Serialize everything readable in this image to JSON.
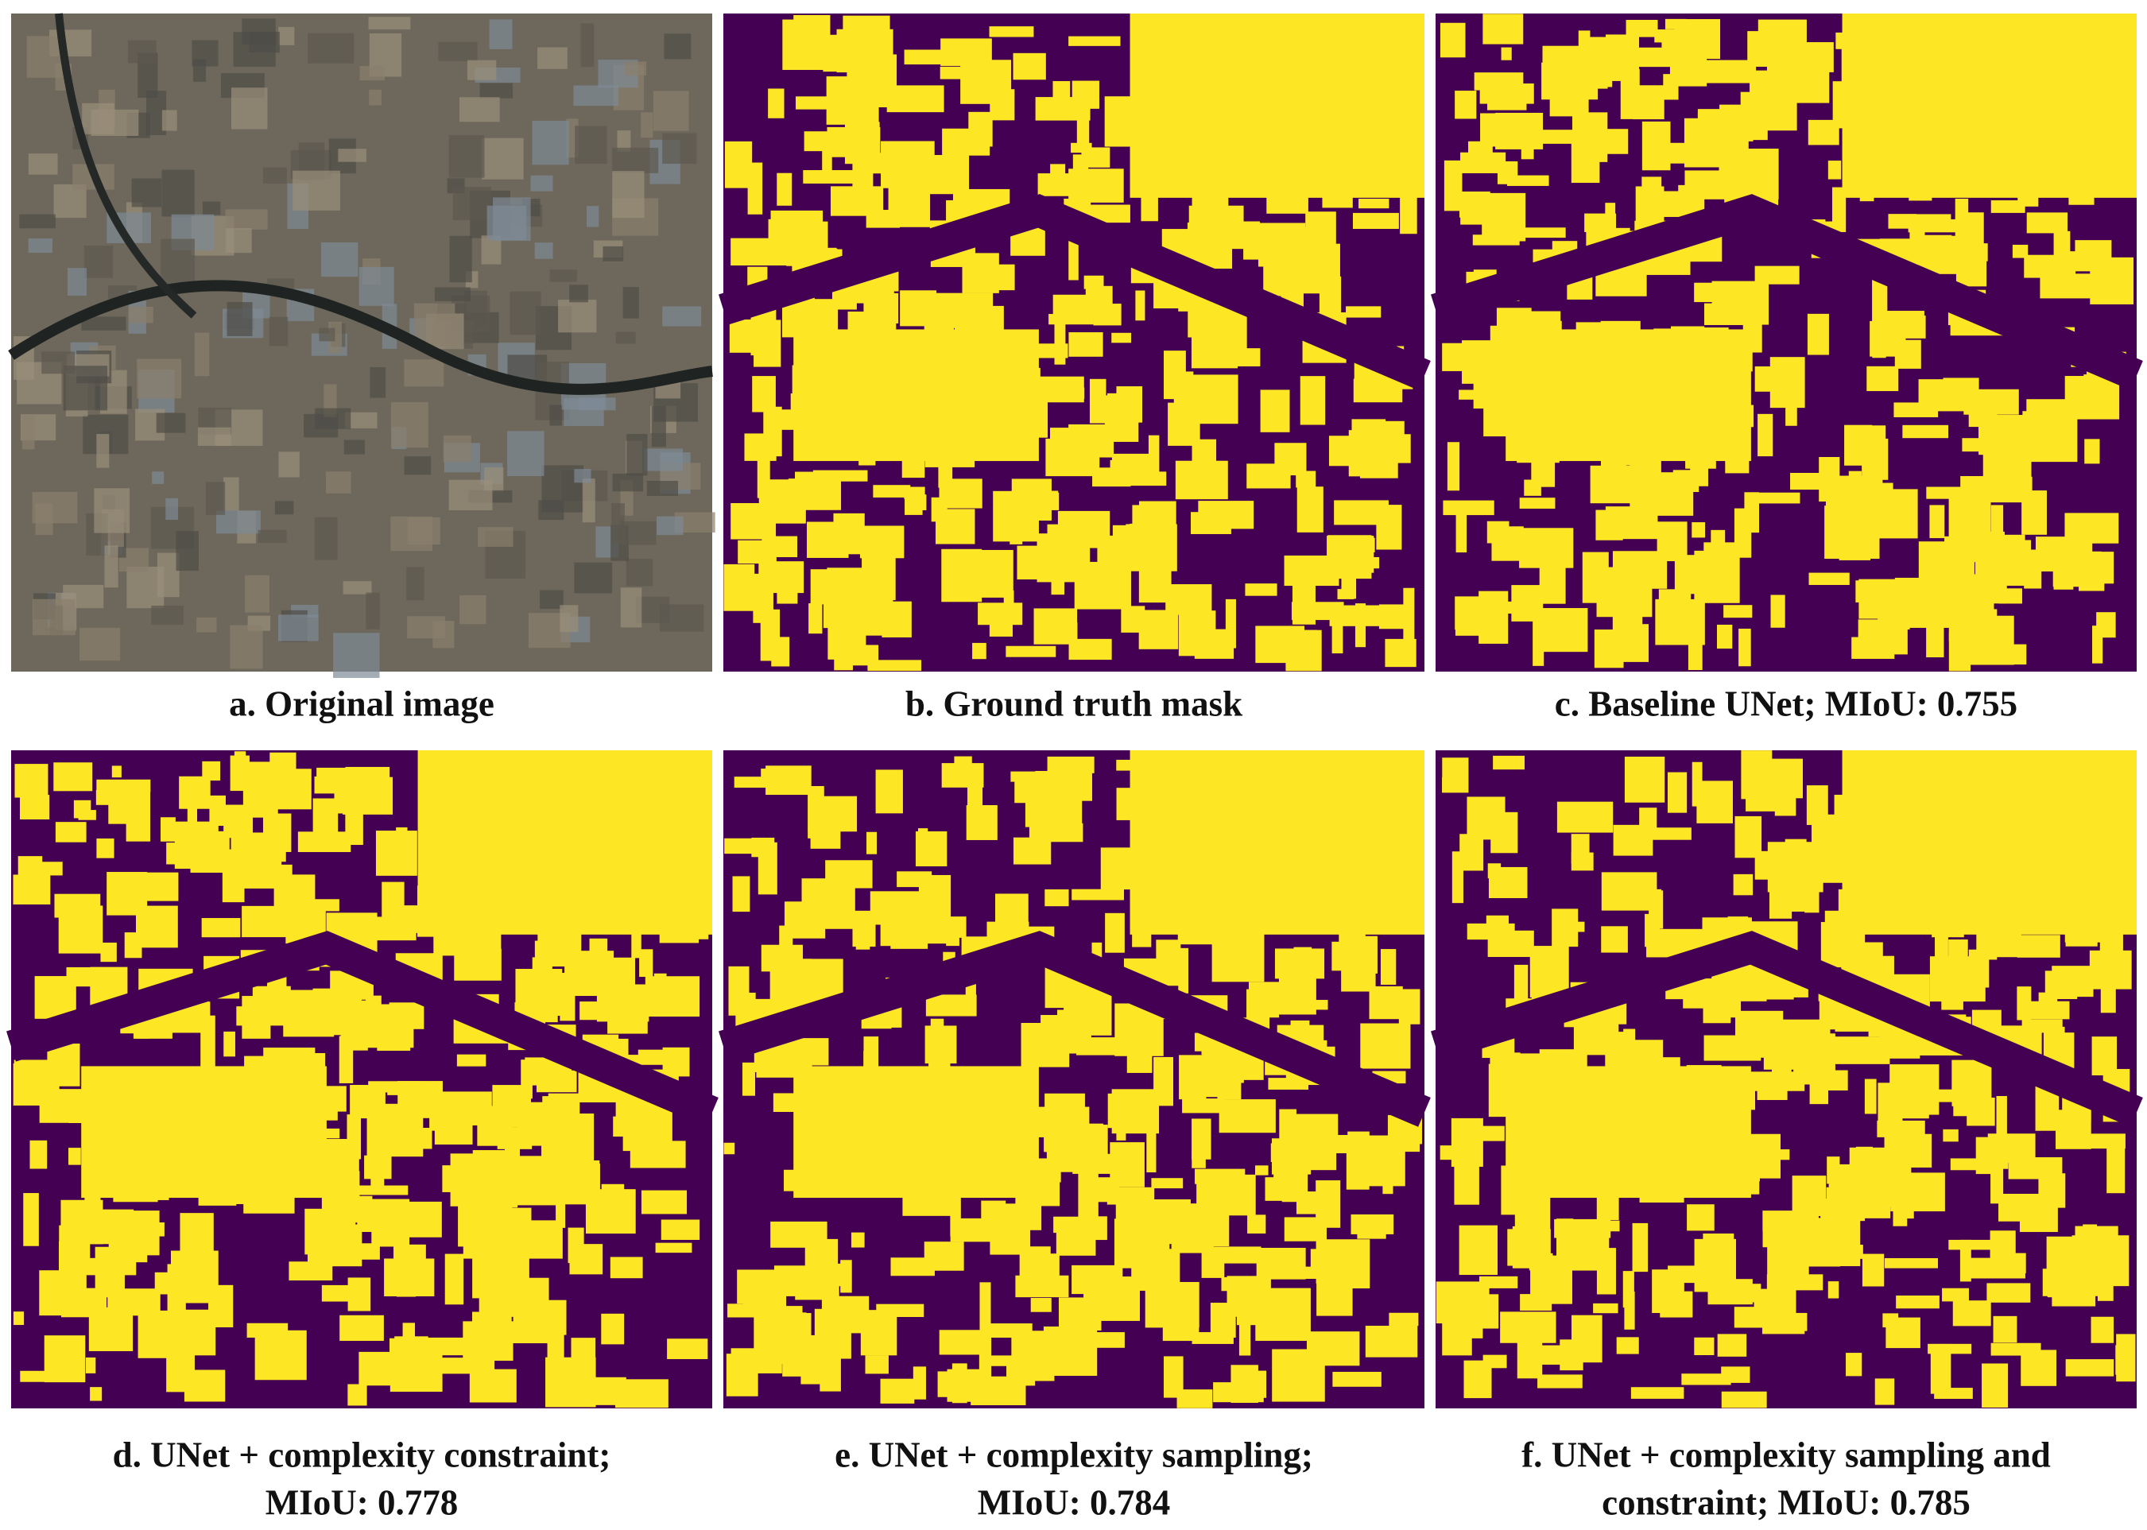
{
  "panels": [
    {
      "caption": [
        "a. Original image"
      ]
    },
    {
      "caption": [
        "b. Ground truth mask"
      ]
    },
    {
      "caption": [
        "c. Baseline UNet; MIoU: 0.755"
      ]
    },
    {
      "caption": [
        "d. UNet + complexity constraint;",
        "MIoU: 0.778"
      ]
    },
    {
      "caption": [
        "e. UNet + complexity sampling;",
        "MIoU: 0.784"
      ]
    },
    {
      "caption": [
        "f. UNet + complexity sampling and",
        "constraint; MIoU: 0.785"
      ]
    }
  ]
}
